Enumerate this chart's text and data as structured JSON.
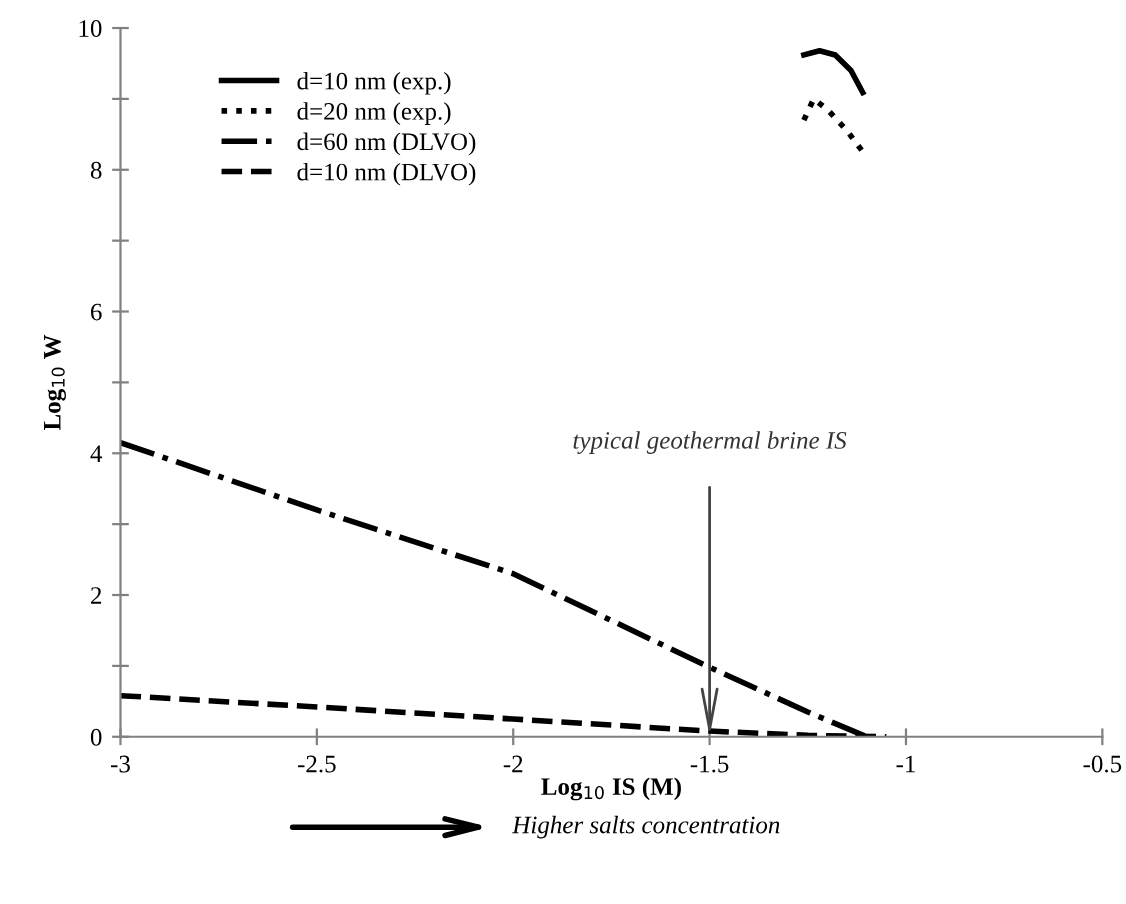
{
  "chart_data": {
    "type": "line",
    "xlabel": "Log$_{10}$ IS (M)",
    "ylabel": "Log$_{10}$ W",
    "series": [
      {
        "name": "d=10 nm (exp.)",
        "color": "#000000",
        "line_style": "solid",
        "x": [
          -1.26,
          -1.22,
          -1.18,
          -1.14,
          -1.11
        ],
        "values": [
          9.62,
          9.68,
          9.62,
          9.4,
          9.09
        ]
      },
      {
        "name": "d=20 nm (exp.)",
        "color": "#000000",
        "line_style": "dotted",
        "x": [
          -1.26,
          -1.235,
          -1.2,
          -1.15,
          -1.1
        ],
        "values": [
          8.7,
          9.0,
          8.85,
          8.55,
          8.18
        ]
      },
      {
        "name": "d=60 nm (DLVO)",
        "color": "#000000",
        "line_style": "dashdot",
        "x": [
          -3,
          -2.5,
          -2,
          -1.5,
          -1.25,
          -1.1
        ],
        "values": [
          4.15,
          3.2,
          2.3,
          0.98,
          0.35,
          0
        ]
      },
      {
        "name": "d=10 nm (DLVO)",
        "color": "#000000",
        "line_style": "dashed",
        "x": [
          -3,
          -2.5,
          -2,
          -1.5,
          -1.25,
          -1.05
        ],
        "values": [
          0.58,
          0.42,
          0.25,
          0.08,
          0.02,
          0
        ]
      }
    ],
    "xlim": [
      -3,
      -0.5
    ],
    "xticks": [
      -3,
      -2.5,
      -2,
      -1.5,
      -1,
      -0.5
    ],
    "ylim": [
      0,
      10
    ],
    "yticks": [
      0,
      {
        "value": 1,
        "label": null
      },
      2,
      {
        "value": 3,
        "label": null
      },
      4,
      {
        "value": 5,
        "label": null
      },
      6,
      {
        "value": 7,
        "label": null
      },
      8,
      {
        "value": 9,
        "label": null
      },
      10
    ],
    "annotations": [
      "typical geothermal brine IS",
      "Higher salts concentration"
    ],
    "legend": "top left",
    "grid": false,
    "marker": "none"
  }
}
